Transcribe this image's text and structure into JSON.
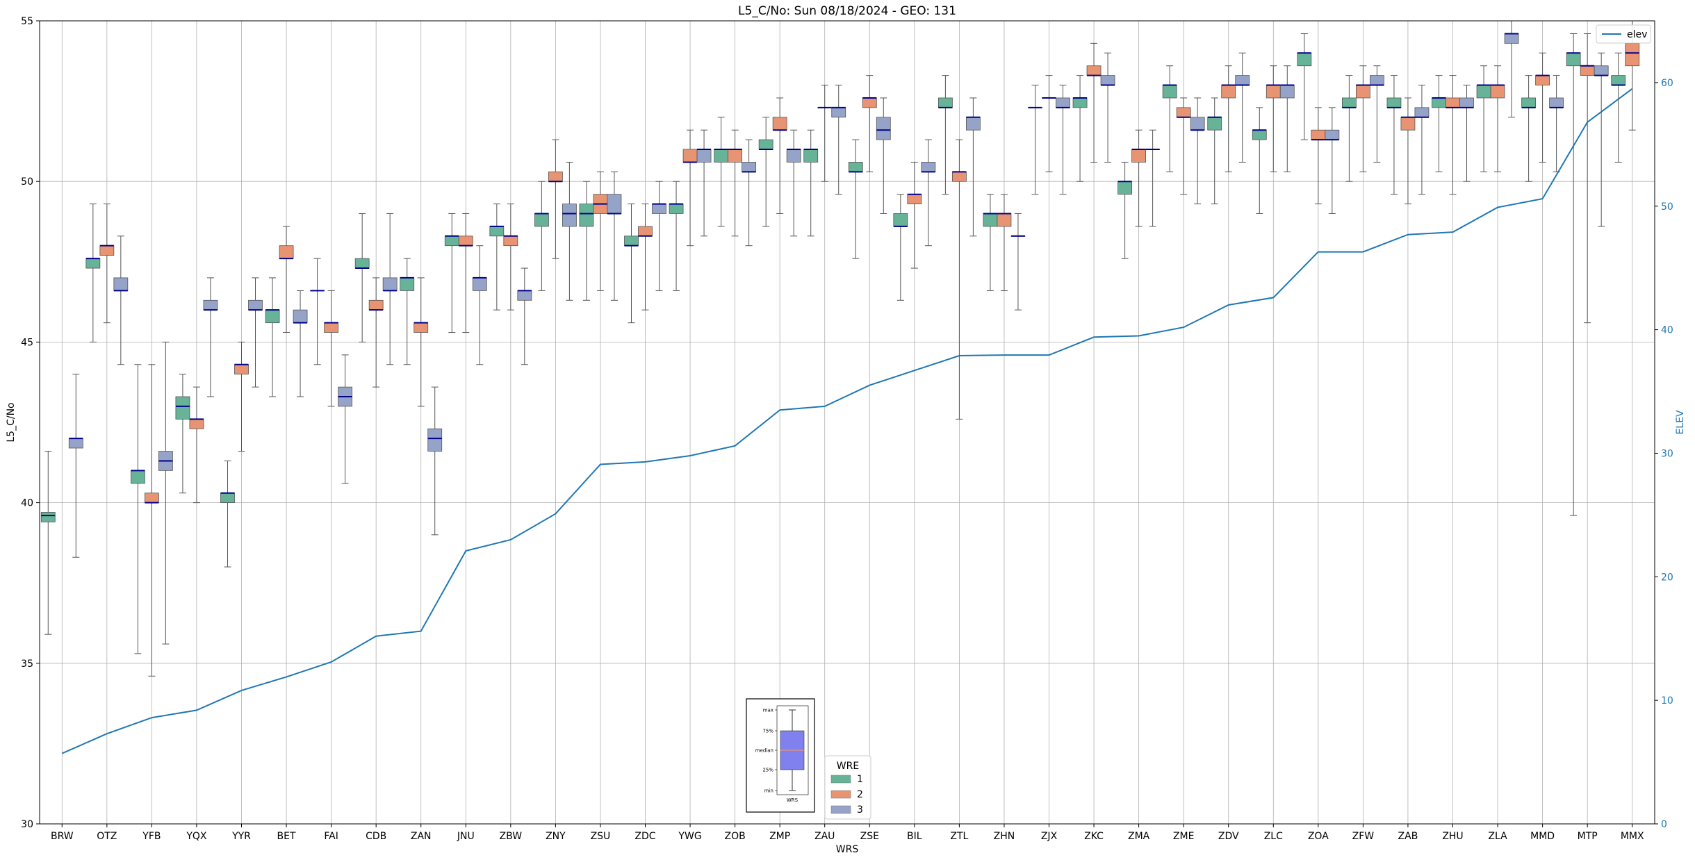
{
  "chart_data": {
    "type": "box",
    "title": "L5_C/No: Sun 08/18/2024 - GEO: 131",
    "xlabel": "WRS",
    "ylabel": "L5_C/No",
    "ylabel_right": "ELEV",
    "ylim": [
      30,
      55
    ],
    "ylim_right": [
      0,
      65
    ],
    "yticks": [
      30,
      35,
      40,
      45,
      50,
      55
    ],
    "yticks_right": [
      0,
      10,
      20,
      30,
      40,
      50,
      60
    ],
    "grid": true,
    "categories": [
      "BRW",
      "OTZ",
      "YFB",
      "YQX",
      "YYR",
      "BET",
      "FAI",
      "CDB",
      "ZAN",
      "JNU",
      "ZBW",
      "ZNY",
      "ZSU",
      "ZDC",
      "YWG",
      "ZOB",
      "ZMP",
      "ZAU",
      "ZSE",
      "BIL",
      "ZTL",
      "ZHN",
      "ZJX",
      "ZKC",
      "ZMA",
      "ZME",
      "ZDV",
      "ZLC",
      "ZOA",
      "ZFW",
      "ZAB",
      "ZHU",
      "ZLA",
      "MMD",
      "MTP",
      "MMX"
    ],
    "wre_legend": {
      "title": "WRE",
      "entries": [
        "1",
        "2",
        "3"
      ],
      "colors": [
        "#66b398",
        "#e89472",
        "#96a3c8"
      ]
    },
    "line_legend": "elev",
    "elev": [
      5.7,
      7.3,
      8.6,
      9.2,
      10.8,
      11.9,
      13.1,
      15.2,
      15.6,
      22.1,
      23.0,
      25.1,
      29.1,
      29.3,
      29.8,
      30.6,
      33.5,
      33.8,
      35.5,
      36.7,
      37.9,
      37.95,
      37.95,
      39.4,
      39.5,
      40.2,
      42.0,
      42.6,
      46.3,
      46.3,
      47.7,
      47.9,
      49.9,
      50.6,
      56.8,
      59.5
    ],
    "boxes": [
      [
        [
          35.9,
          39.4,
          39.6,
          39.7,
          41.6
        ],
        null,
        [
          38.3,
          41.7,
          42.0,
          42.0,
          44.0
        ]
      ],
      [
        [
          45.0,
          47.3,
          47.6,
          47.6,
          49.3
        ],
        [
          45.6,
          47.7,
          48.0,
          48.0,
          49.3
        ],
        [
          44.3,
          46.6,
          46.6,
          47.0,
          48.3
        ]
      ],
      [
        [
          35.3,
          40.6,
          41.0,
          41.0,
          44.3
        ],
        [
          34.6,
          40.0,
          40.0,
          40.3,
          44.3
        ],
        [
          35.6,
          41.0,
          41.3,
          41.6,
          45.0
        ]
      ],
      [
        [
          40.3,
          42.6,
          43.0,
          43.3,
          44.0
        ],
        [
          40.0,
          42.3,
          42.6,
          42.6,
          43.6
        ],
        [
          43.3,
          46.0,
          46.0,
          46.3,
          47.0
        ]
      ],
      [
        [
          38.0,
          40.0,
          40.3,
          40.3,
          41.3
        ],
        [
          41.6,
          44.0,
          44.3,
          44.3,
          45.0
        ],
        [
          43.6,
          46.0,
          46.0,
          46.3,
          47.0
        ]
      ],
      [
        [
          43.3,
          45.6,
          46.0,
          46.0,
          47.0
        ],
        [
          45.3,
          47.6,
          47.6,
          48.0,
          48.6
        ],
        [
          43.3,
          45.6,
          45.6,
          46.0,
          46.6
        ]
      ],
      [
        [
          44.3,
          46.6,
          46.6,
          46.6,
          47.6
        ],
        [
          43.0,
          45.3,
          45.6,
          45.6,
          46.6
        ],
        [
          40.6,
          43.0,
          43.3,
          43.6,
          44.6
        ]
      ],
      [
        [
          45.0,
          47.3,
          47.3,
          47.6,
          49.0
        ],
        [
          43.6,
          46.0,
          46.0,
          46.3,
          47.0
        ],
        [
          44.3,
          46.6,
          46.6,
          47.0,
          49.0
        ]
      ],
      [
        [
          44.3,
          46.6,
          47.0,
          47.0,
          47.6
        ],
        [
          43.0,
          45.3,
          45.6,
          45.6,
          47.0
        ],
        [
          39.0,
          41.6,
          42.0,
          42.3,
          43.6
        ]
      ],
      [
        [
          45.3,
          48.0,
          48.3,
          48.3,
          49.0
        ],
        [
          45.3,
          48.0,
          48.0,
          48.3,
          49.0
        ],
        [
          44.3,
          46.6,
          47.0,
          47.0,
          48.0
        ]
      ],
      [
        [
          46.0,
          48.3,
          48.6,
          48.6,
          49.3
        ],
        [
          46.0,
          48.0,
          48.3,
          48.3,
          49.3
        ],
        [
          44.3,
          46.3,
          46.6,
          46.6,
          47.3
        ]
      ],
      [
        [
          46.6,
          48.6,
          49.0,
          49.0,
          50.0
        ],
        [
          47.6,
          50.0,
          50.0,
          50.3,
          51.3
        ],
        [
          46.3,
          48.6,
          49.0,
          49.3,
          50.6
        ]
      ],
      [
        [
          46.3,
          48.6,
          49.0,
          49.3,
          50.0
        ],
        [
          46.6,
          49.0,
          49.3,
          49.6,
          50.3
        ],
        [
          46.3,
          49.0,
          49.0,
          49.6,
          50.3
        ]
      ],
      [
        [
          45.6,
          48.0,
          48.0,
          48.3,
          49.3
        ],
        [
          46.0,
          48.3,
          48.3,
          48.6,
          49.3
        ],
        [
          46.6,
          49.0,
          49.3,
          49.3,
          50.0
        ]
      ],
      [
        [
          46.6,
          49.0,
          49.3,
          49.3,
          50.0
        ],
        [
          48.0,
          50.6,
          50.6,
          51.0,
          51.6
        ],
        [
          48.3,
          50.6,
          51.0,
          51.0,
          51.6
        ]
      ],
      [
        [
          48.6,
          50.6,
          51.0,
          51.0,
          52.0
        ],
        [
          48.3,
          50.6,
          51.0,
          51.0,
          51.6
        ],
        [
          48.0,
          50.3,
          50.3,
          50.6,
          51.3
        ]
      ],
      [
        [
          48.6,
          51.0,
          51.0,
          51.3,
          52.0
        ],
        [
          49.0,
          51.6,
          51.6,
          52.0,
          52.6
        ],
        [
          48.3,
          50.6,
          51.0,
          51.0,
          51.6
        ]
      ],
      [
        [
          48.3,
          50.6,
          51.0,
          51.0,
          51.6
        ],
        [
          50.0,
          52.3,
          52.3,
          52.3,
          53.0
        ],
        [
          49.6,
          52.0,
          52.3,
          52.3,
          53.0
        ]
      ],
      [
        [
          47.6,
          50.3,
          50.3,
          50.6,
          51.3
        ],
        [
          50.3,
          52.3,
          52.6,
          52.6,
          53.3
        ],
        [
          49.0,
          51.3,
          51.6,
          52.0,
          52.6
        ]
      ],
      [
        [
          46.3,
          48.6,
          48.6,
          49.0,
          49.6
        ],
        [
          47.3,
          49.3,
          49.6,
          49.6,
          50.6
        ],
        [
          48.0,
          50.3,
          50.3,
          50.6,
          51.3
        ]
      ],
      [
        [
          49.6,
          52.3,
          52.3,
          52.6,
          53.3
        ],
        [
          42.6,
          50.0,
          50.3,
          50.3,
          51.3
        ],
        [
          48.3,
          51.6,
          52.0,
          52.0,
          52.6
        ]
      ],
      [
        [
          46.6,
          48.6,
          49.0,
          49.0,
          49.6
        ],
        [
          46.6,
          48.6,
          49.0,
          49.0,
          49.6
        ],
        [
          46.0,
          48.3,
          48.3,
          48.3,
          49.0
        ]
      ],
      [
        [
          49.6,
          52.3,
          52.3,
          52.3,
          53.0
        ],
        [
          50.3,
          52.6,
          52.6,
          52.6,
          53.3
        ],
        [
          49.6,
          52.3,
          52.3,
          52.6,
          53.0
        ]
      ],
      [
        [
          50.0,
          52.3,
          52.6,
          52.6,
          53.3
        ],
        [
          50.6,
          53.3,
          53.3,
          53.6,
          54.3
        ],
        [
          50.6,
          53.0,
          53.0,
          53.3,
          54.0
        ]
      ],
      [
        [
          47.6,
          49.6,
          50.0,
          50.0,
          50.6
        ],
        [
          48.6,
          50.6,
          51.0,
          51.0,
          51.6
        ],
        [
          48.6,
          51.0,
          51.0,
          51.0,
          51.6
        ]
      ],
      [
        [
          50.3,
          52.6,
          53.0,
          53.0,
          53.6
        ],
        [
          49.6,
          52.0,
          52.0,
          52.3,
          52.6
        ],
        [
          49.3,
          51.6,
          51.6,
          52.0,
          52.6
        ]
      ],
      [
        [
          49.3,
          51.6,
          52.0,
          52.0,
          52.6
        ],
        [
          50.3,
          52.6,
          53.0,
          53.0,
          53.6
        ],
        [
          50.6,
          53.0,
          53.0,
          53.3,
          54.0
        ]
      ],
      [
        [
          49.0,
          51.3,
          51.6,
          51.6,
          52.3
        ],
        [
          50.3,
          52.6,
          53.0,
          53.0,
          53.6
        ],
        [
          50.3,
          52.6,
          53.0,
          53.0,
          53.6
        ]
      ],
      [
        [
          51.3,
          53.6,
          54.0,
          54.0,
          54.6
        ],
        [
          49.3,
          51.3,
          51.3,
          51.6,
          52.3
        ],
        [
          49.0,
          51.3,
          51.3,
          51.6,
          52.3
        ]
      ],
      [
        [
          50.0,
          52.3,
          52.3,
          52.6,
          53.3
        ],
        [
          50.3,
          52.6,
          53.0,
          53.0,
          53.6
        ],
        [
          50.6,
          53.0,
          53.0,
          53.3,
          53.6
        ]
      ],
      [
        [
          49.6,
          52.3,
          52.3,
          52.6,
          53.3
        ],
        [
          49.3,
          51.6,
          52.0,
          52.0,
          52.6
        ],
        [
          49.6,
          52.0,
          52.0,
          52.3,
          53.0
        ]
      ],
      [
        [
          50.3,
          52.3,
          52.6,
          52.6,
          53.3
        ],
        [
          49.6,
          52.3,
          52.3,
          52.6,
          53.3
        ],
        [
          50.0,
          52.3,
          52.3,
          52.6,
          53.0
        ]
      ],
      [
        [
          50.3,
          52.6,
          53.0,
          53.0,
          53.6
        ],
        [
          50.3,
          52.6,
          53.0,
          53.0,
          53.6
        ],
        [
          52.0,
          54.3,
          54.6,
          54.6,
          55.0
        ]
      ],
      [
        [
          50.0,
          52.3,
          52.3,
          52.6,
          53.3
        ],
        [
          50.6,
          53.0,
          53.3,
          53.3,
          54.0
        ],
        [
          50.3,
          52.3,
          52.3,
          52.6,
          53.3
        ]
      ],
      [
        [
          39.6,
          53.6,
          54.0,
          54.0,
          54.6
        ],
        [
          45.6,
          53.3,
          53.6,
          53.6,
          54.6
        ],
        [
          48.6,
          53.3,
          53.3,
          53.6,
          54.0
        ]
      ],
      [
        [
          50.6,
          53.0,
          53.0,
          53.3,
          54.0
        ],
        [
          51.6,
          53.6,
          54.0,
          54.3,
          55.0
        ],
        null
      ]
    ],
    "box_key": {
      "labels": [
        "max",
        "75%",
        "median",
        "25%",
        "min"
      ],
      "xlabel": "WRS",
      "box_color": "#8080ee",
      "median_color": "#e89472"
    }
  }
}
